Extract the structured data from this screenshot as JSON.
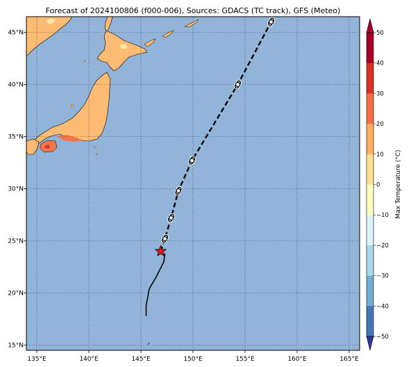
{
  "title": "Forecast of 2024100806 (f000-006), Sources: GDACS (TC track), GFS (Meteo)",
  "map": {
    "lon_range": [
      134,
      166
    ],
    "lat_range": [
      14.5,
      46.5
    ],
    "lon_ticks": [
      135,
      140,
      145,
      150,
      155,
      160,
      165
    ],
    "lon_tick_labels": [
      "135°E",
      "140°E",
      "145°E",
      "150°E",
      "155°E",
      "160°E",
      "165°E"
    ],
    "lat_ticks": [
      15,
      20,
      25,
      30,
      35,
      40,
      45
    ],
    "lat_tick_labels": [
      "15°N",
      "20°N",
      "25°N",
      "30°N",
      "35°N",
      "40°N",
      "45°N"
    ],
    "gridlines": true,
    "ocean_color": "#92b4d8",
    "land_colors": [
      "#fdbb74",
      "#f4764b",
      "#fee9a9",
      "#d7382e"
    ]
  },
  "track": {
    "past": [
      [
        145.5,
        17.8
      ],
      [
        145.5,
        18.8
      ],
      [
        145.8,
        20.4
      ],
      [
        146.5,
        21.6
      ],
      [
        147.2,
        23.0
      ],
      [
        147.3,
        23.8
      ]
    ],
    "current_position": [
      146.9,
      24.0
    ],
    "forecast": [
      [
        146.9,
        24.0
      ],
      [
        147.3,
        25.2
      ],
      [
        147.9,
        27.2
      ],
      [
        148.6,
        29.8
      ],
      [
        149.9,
        32.7
      ],
      [
        154.3,
        40.0
      ],
      [
        157.5,
        46.0
      ]
    ],
    "symbol_positions": [
      [
        147.3,
        25.2
      ],
      [
        147.9,
        27.2
      ],
      [
        148.6,
        29.8
      ],
      [
        149.9,
        32.7
      ],
      [
        154.3,
        40.0
      ],
      [
        157.5,
        46.0
      ]
    ],
    "marker_color": "#e41a1c"
  },
  "colorbar": {
    "label": "Max Temperature (°C)",
    "tick_values": [
      50,
      40,
      30,
      20,
      10,
      0,
      -10,
      -20,
      -30,
      -40,
      -50
    ],
    "tick_labels": [
      "50",
      "40",
      "30",
      "20",
      "10",
      "0",
      "−10",
      "−20",
      "−30",
      "−40",
      "−50"
    ],
    "colors_top_to_bottom": [
      "#a50026",
      "#d73027",
      "#f46d43",
      "#fdae61",
      "#fee090",
      "#ffffbf",
      "#e0f3f8",
      "#abd9e9",
      "#74add1",
      "#4575b4",
      "#313695"
    ]
  }
}
